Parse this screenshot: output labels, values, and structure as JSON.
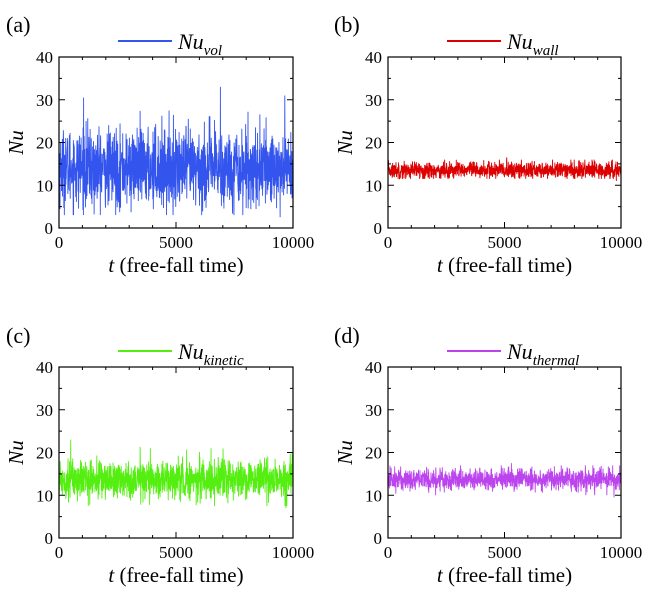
{
  "figure": {
    "panels": [
      "(a)",
      "(b)",
      "(c)",
      "(d)"
    ]
  },
  "chart_data": [
    {
      "type": "line",
      "panel_label": "(a)",
      "legend": {
        "base": "Nu",
        "sub": "vol"
      },
      "color": "#3355ee",
      "xlabel": {
        "var": "t",
        "rest": " (free-fall time)"
      },
      "ylabel": "Nu",
      "xlim": [
        0,
        10000
      ],
      "ylim": [
        0,
        40
      ],
      "xticks": [
        "0",
        "5000",
        "10000"
      ],
      "yticks": [
        "0",
        "10",
        "20",
        "30",
        "40"
      ],
      "series_summary": {
        "mean": 14,
        "min": 2.5,
        "max": 33,
        "spread": 4.5
      },
      "x": [
        0,
        10000
      ],
      "notable_peaks": [
        [
          1050,
          30.5
        ],
        [
          6900,
          33
        ],
        [
          9650,
          31
        ],
        [
          9450,
          2.5
        ],
        [
          6100,
          3
        ],
        [
          1500,
          3.2
        ]
      ]
    },
    {
      "type": "line",
      "panel_label": "(b)",
      "legend": {
        "base": "Nu",
        "sub": "wall"
      },
      "color": "#dd0000",
      "xlabel": {
        "var": "t",
        "rest": " (free-fall time)"
      },
      "ylabel": "Nu",
      "xlim": [
        0,
        10000
      ],
      "ylim": [
        0,
        40
      ],
      "xticks": [
        "0",
        "5000",
        "10000"
      ],
      "yticks": [
        "0",
        "10",
        "20",
        "30",
        "40"
      ],
      "series_summary": {
        "mean": 13.5,
        "min": 11,
        "max": 16.5,
        "spread": 1.0
      },
      "x": [
        0,
        10000
      ],
      "notable_peaks": [
        [
          5100,
          16.5
        ],
        [
          9800,
          11
        ]
      ]
    },
    {
      "type": "line",
      "panel_label": "(c)",
      "legend": {
        "base": "Nu",
        "sub": "kinetic"
      },
      "color": "#55ee11",
      "xlabel": {
        "var": "t",
        "rest": " (free-fall time)"
      },
      "ylabel": "Nu",
      "xlim": [
        0,
        10000
      ],
      "ylim": [
        0,
        40
      ],
      "xticks": [
        "0",
        "5000",
        "10000"
      ],
      "yticks": [
        "0",
        "10",
        "20",
        "30",
        "40"
      ],
      "series_summary": {
        "mean": 13.7,
        "min": 7,
        "max": 23,
        "spread": 2.2
      },
      "x": [
        0,
        10000
      ],
      "notable_peaks": [
        [
          500,
          23
        ],
        [
          3900,
          21
        ],
        [
          6500,
          21
        ],
        [
          9700,
          7
        ]
      ]
    },
    {
      "type": "line",
      "panel_label": "(d)",
      "legend": {
        "base": "Nu",
        "sub": "thermal"
      },
      "color": "#bb44ee",
      "xlabel": {
        "var": "t",
        "rest": " (free-fall time)"
      },
      "ylabel": "Nu",
      "xlim": [
        0,
        10000
      ],
      "ylim": [
        0,
        40
      ],
      "xticks": [
        "0",
        "5000",
        "10000"
      ],
      "yticks": [
        "0",
        "10",
        "20",
        "30",
        "40"
      ],
      "series_summary": {
        "mean": 13.7,
        "min": 9.5,
        "max": 17.5,
        "spread": 1.3
      },
      "x": [
        0,
        10000
      ],
      "notable_peaks": [
        [
          5300,
          17.5
        ],
        [
          9700,
          9.5
        ]
      ]
    }
  ]
}
